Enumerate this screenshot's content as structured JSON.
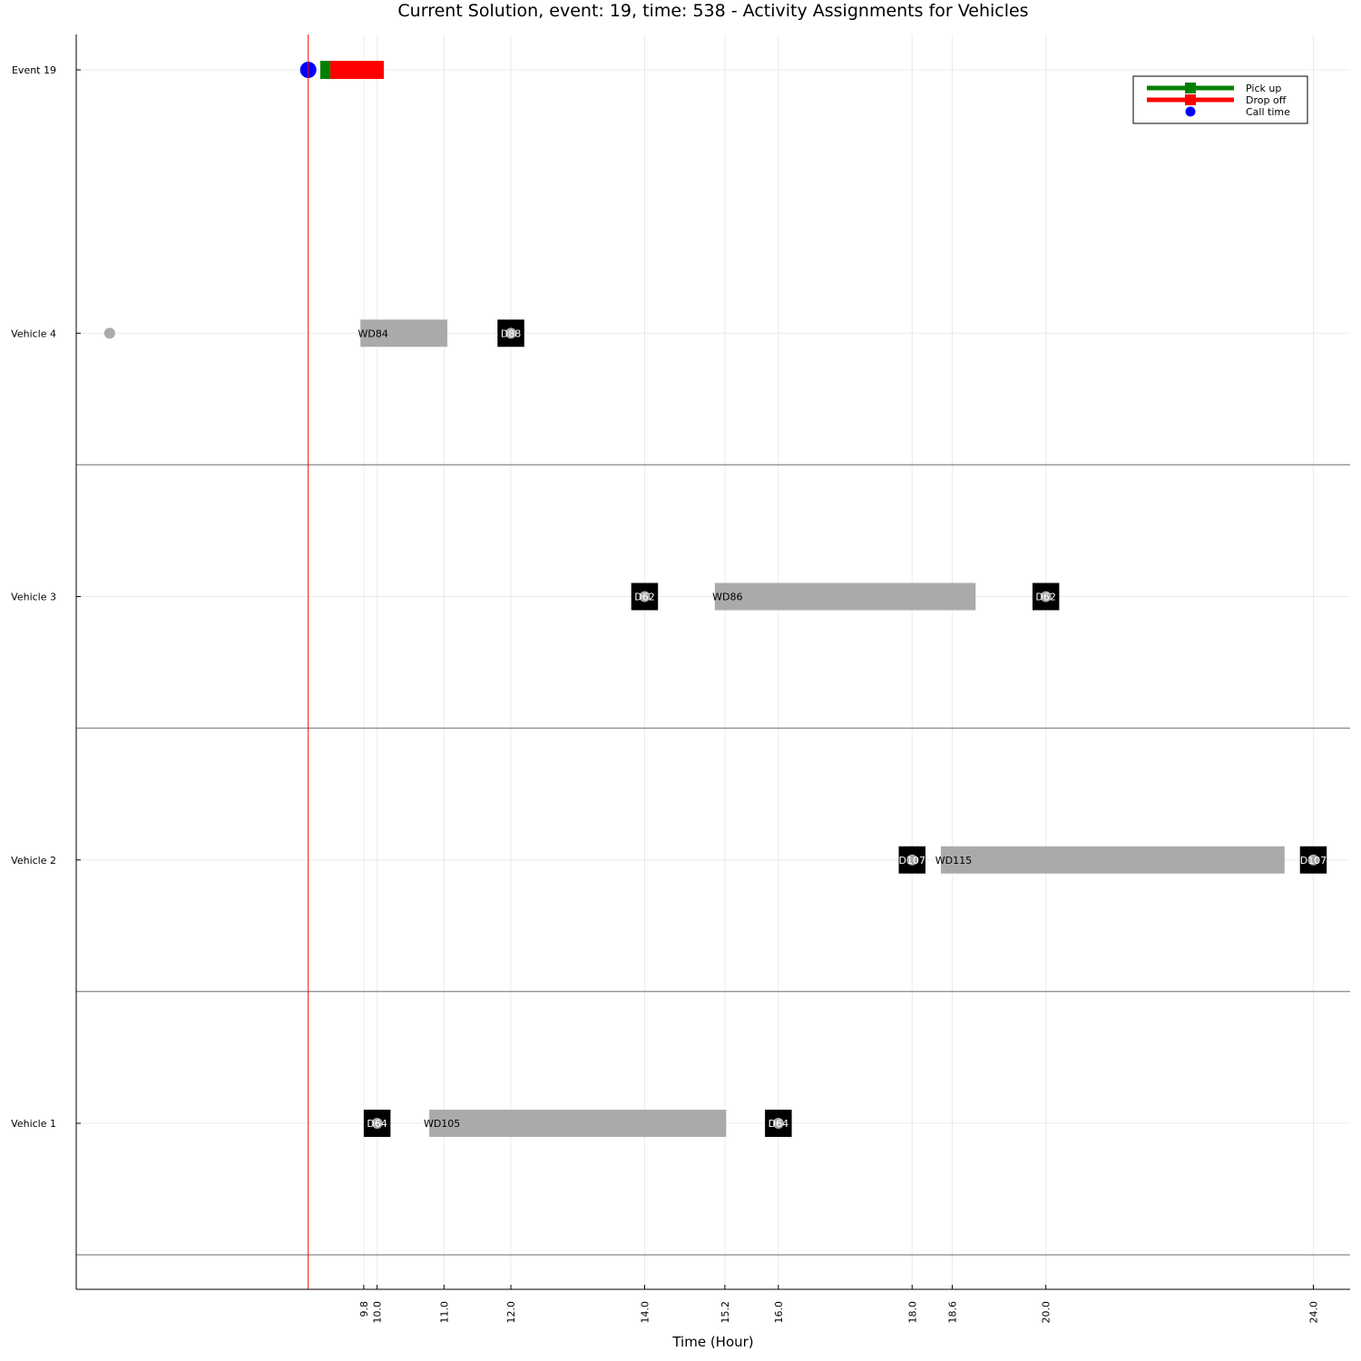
{
  "chart_data": {
    "type": "gantt",
    "title": "Current Solution, event: 19, time: 538 - Activity Assignments for Vehicles",
    "xlabel": "Time (Hour)",
    "xticks": [
      9.8,
      10.0,
      11.0,
      12.0,
      14.0,
      15.2,
      16.0,
      18.0,
      18.6,
      20.0,
      24.0
    ],
    "xtick_labels": [
      "9.8",
      "10.0",
      "11.0",
      "12.0",
      "14.0",
      "15.2",
      "16.0",
      "18.0",
      "18.6",
      "20.0",
      "24.0"
    ],
    "xlim": [
      5.5,
      24.55
    ],
    "rows": [
      "Event 19",
      "Vehicle 4",
      "Vehicle 3",
      "Vehicle 2",
      "Vehicle 1"
    ],
    "current_time": 8.97,
    "event": {
      "row": "Event 19",
      "call_time": 8.97,
      "pickup": [
        9.15,
        9.3
      ],
      "dropoff": [
        9.3,
        10.1
      ]
    },
    "vehicles": [
      {
        "row": "Vehicle 4",
        "start_point": 6.0,
        "bars": [
          {
            "label": "WD84",
            "start": 9.75,
            "end": 11.05,
            "color": "#aaaaaa"
          },
          {
            "label": "D88",
            "start": 11.8,
            "end": 12.2,
            "color": "#000000"
          }
        ],
        "markers": [
          12.0
        ]
      },
      {
        "row": "Vehicle 3",
        "bars": [
          {
            "label": "D62",
            "start": 13.8,
            "end": 14.2,
            "color": "#000000"
          },
          {
            "label": "WD86",
            "start": 15.05,
            "end": 18.95,
            "color": "#aaaaaa"
          },
          {
            "label": "D62",
            "start": 19.8,
            "end": 20.2,
            "color": "#000000"
          }
        ],
        "markers": [
          14.0,
          20.0
        ]
      },
      {
        "row": "Vehicle 2",
        "bars": [
          {
            "label": "D107",
            "start": 17.8,
            "end": 18.2,
            "color": "#000000"
          },
          {
            "label": "WD115",
            "start": 18.43,
            "end": 23.57,
            "color": "#aaaaaa"
          },
          {
            "label": "D107",
            "start": 23.8,
            "end": 24.2,
            "color": "#000000"
          }
        ],
        "markers": [
          18.0,
          24.0
        ]
      },
      {
        "row": "Vehicle 1",
        "bars": [
          {
            "label": "D64",
            "start": 9.8,
            "end": 10.2,
            "color": "#000000"
          },
          {
            "label": "WD105",
            "start": 10.78,
            "end": 15.22,
            "color": "#aaaaaa"
          },
          {
            "label": "D64",
            "start": 15.8,
            "end": 16.2,
            "color": "#000000"
          }
        ],
        "markers": [
          10.0,
          16.0
        ]
      }
    ],
    "legend": {
      "position": "top-right",
      "entries": [
        {
          "label": "Pick up",
          "color": "#008000",
          "marker": "square"
        },
        {
          "label": "Drop off",
          "color": "#ff0000",
          "marker": "square"
        },
        {
          "label": "Call time",
          "color": "#0000ff",
          "marker": "circle"
        }
      ]
    },
    "grid": true
  }
}
